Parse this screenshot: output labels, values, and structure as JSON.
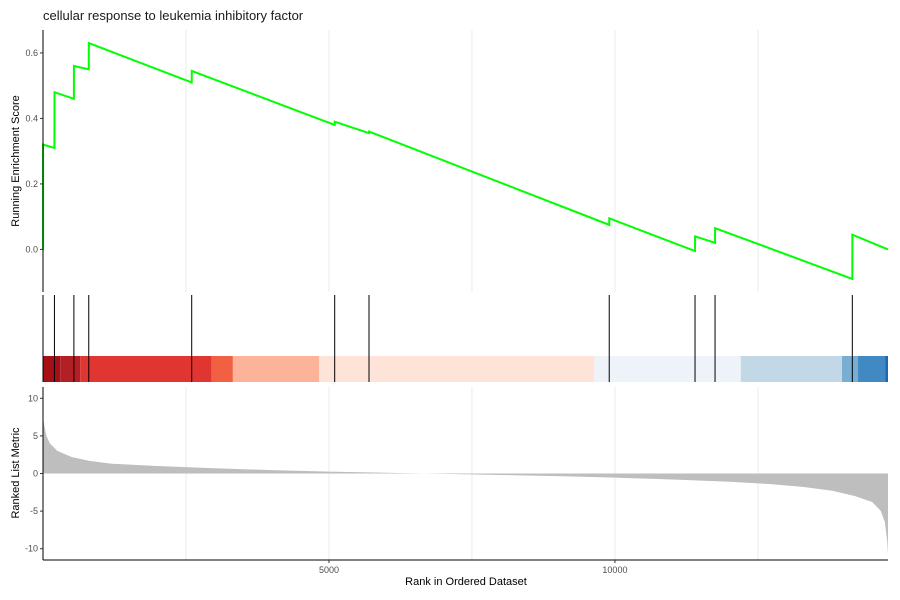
{
  "chart_data": {
    "type": "line",
    "title": "cellular response to leukemia inhibitory factor",
    "xlabel": "Rank in Ordered Dataset",
    "xlim": [
      0,
      14774
    ],
    "x_ticks": [
      5000,
      10000
    ],
    "x_tick_labels": [
      "5000",
      "10000"
    ],
    "grid": "vertical major lines at 2500-step intervals",
    "panels": {
      "running_score": {
        "ylabel": "Running Enrichment Score",
        "ylim": [
          -0.13,
          0.67
        ],
        "y_ticks": [
          0.0,
          0.2,
          0.4,
          0.6
        ],
        "y_tick_labels": [
          "0.0",
          "0.2",
          "0.4",
          "0.6"
        ],
        "line_color": "#00FF00",
        "series": [
          {
            "x": [
              0,
              1,
              1,
              200,
              201,
              540,
              541,
              800,
              801,
              2600,
              2601,
              5100,
              5101,
              5700,
              5701,
              9900,
              9901,
              11400,
              11401,
              11750,
              11751,
              14150,
              14151,
              14774
            ],
            "y": [
              0.0,
              0.0,
              0.32,
              0.31,
              0.48,
              0.46,
              0.56,
              0.55,
              0.63,
              0.51,
              0.545,
              0.38,
              0.39,
              0.355,
              0.36,
              0.075,
              0.095,
              -0.005,
              0.04,
              0.02,
              0.065,
              -0.09,
              0.045,
              0.0
            ]
          }
        ]
      },
      "gene_hits": {
        "positions": [
          0,
          200,
          540,
          800,
          2600,
          5100,
          5700,
          9900,
          11400,
          11750,
          14150
        ]
      },
      "rank_heatmap": {
        "segments": [
          {
            "start": 0,
            "end": 300,
            "color": "#A50F15"
          },
          {
            "start": 300,
            "end": 650,
            "color": "#B22025"
          },
          {
            "start": 650,
            "end": 2950,
            "color": "#E03530"
          },
          {
            "start": 2950,
            "end": 3320,
            "color": "#F26044"
          },
          {
            "start": 3320,
            "end": 4830,
            "color": "#FCB399"
          },
          {
            "start": 4830,
            "end": 9640,
            "color": "#FEE4D8"
          },
          {
            "start": 9640,
            "end": 12200,
            "color": "#EEF3FA"
          },
          {
            "start": 12200,
            "end": 13970,
            "color": "#C2D8E6"
          },
          {
            "start": 13970,
            "end": 14250,
            "color": "#79AED3"
          },
          {
            "start": 14250,
            "end": 14730,
            "color": "#4189C2"
          },
          {
            "start": 14730,
            "end": 14774,
            "color": "#2166AC"
          }
        ]
      },
      "ranked_metric": {
        "ylabel": "Ranked List Metric",
        "ylim": [
          -11.5,
          11.5
        ],
        "y_ticks": [
          -10,
          -5,
          0,
          5,
          10
        ],
        "y_tick_labels": [
          "-10",
          "-5",
          "0",
          "5",
          "10"
        ],
        "fill_color": "#BEBEBE",
        "x": [
          0,
          20,
          60,
          120,
          250,
          500,
          800,
          1200,
          2000,
          3000,
          4000,
          5000,
          6000,
          7000,
          8000,
          9000,
          10000,
          11000,
          12000,
          12700,
          13300,
          13800,
          14200,
          14500,
          14650,
          14720,
          14760,
          14774
        ],
        "values": [
          7.5,
          6.5,
          5.0,
          4.0,
          3.0,
          2.2,
          1.7,
          1.3,
          1.0,
          0.7,
          0.45,
          0.25,
          0.1,
          -0.05,
          -0.2,
          -0.35,
          -0.55,
          -0.8,
          -1.1,
          -1.4,
          -1.8,
          -2.3,
          -3.0,
          -3.8,
          -5.0,
          -6.5,
          -9.0,
          -10.8
        ]
      }
    }
  }
}
